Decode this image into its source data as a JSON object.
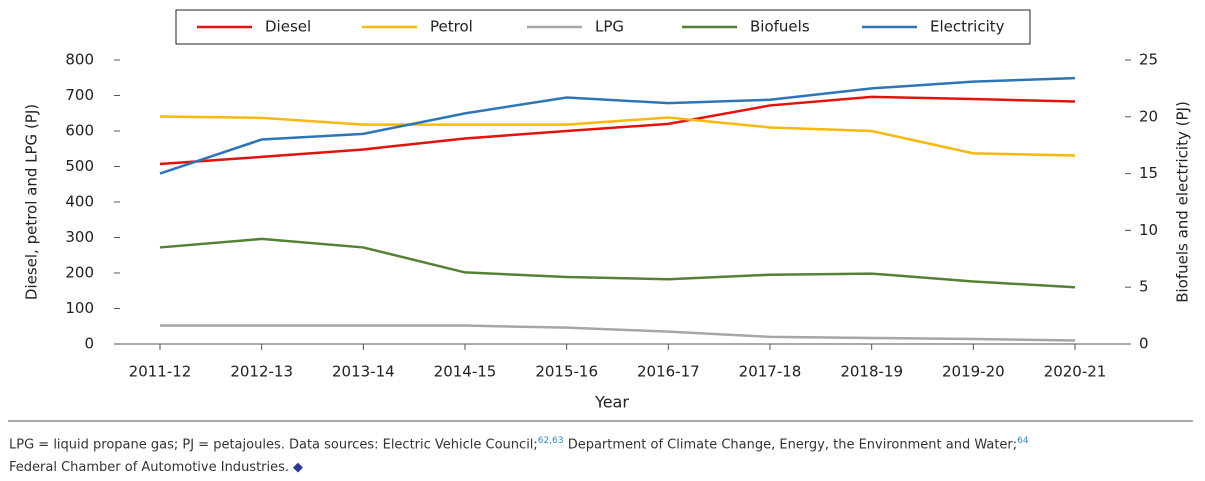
{
  "chart_data": {
    "type": "line",
    "categories": [
      "2011-12",
      "2012-13",
      "2013-14",
      "2014-15",
      "2015-16",
      "2016-17",
      "2017-18",
      "2018-19",
      "2019-20",
      "2020-21"
    ],
    "series": [
      {
        "name": "Diesel",
        "color": "#e3120b",
        "values": [
          507,
          527,
          548,
          579,
          600,
          620,
          672,
          696,
          690,
          683
        ]
      },
      {
        "name": "Petrol",
        "color": "#f7b90f",
        "values": [
          641,
          637,
          618,
          618,
          618,
          638,
          610,
          600,
          537,
          531
        ]
      },
      {
        "name": "LPG",
        "color": "#a6a6a6",
        "values": [
          52,
          52,
          52,
          52,
          46,
          35,
          20,
          17,
          14,
          10
        ]
      },
      {
        "name": "Biofuels",
        "color": "#548235",
        "axis": "y2",
        "values": [
          8.5,
          9.25,
          8.5,
          6.3,
          5.9,
          5.7,
          6.1,
          6.2,
          5.5,
          5.0
        ]
      },
      {
        "name": "Electricity",
        "color": "#2e75b6",
        "axis": "y2",
        "values": [
          15.0,
          18.0,
          18.5,
          20.3,
          21.7,
          21.2,
          21.5,
          22.5,
          23.1,
          23.4
        ]
      }
    ],
    "ylim": [
      0,
      800
    ],
    "yticks": [
      0,
      100,
      200,
      300,
      400,
      500,
      600,
      700,
      800
    ],
    "y2lim": [
      0,
      25
    ],
    "y2ticks": [
      0,
      5,
      10,
      15,
      20,
      25
    ],
    "ylabel": "Diesel, petrol and LPG  (PJ)",
    "y2label": "Biofuels and electricity (PJ)",
    "xlabel": "Year",
    "legend": "top"
  },
  "footnote": {
    "text1": "LPG = liquid propane gas; PJ = petajoules. Data sources: Electric Vehicle Council;",
    "sup1": "62,63",
    "text2": " Department of Climate Change, Energy, the Environment and Water;",
    "sup2": "64",
    "text3": "Federal Chamber of Automotive Industries."
  }
}
